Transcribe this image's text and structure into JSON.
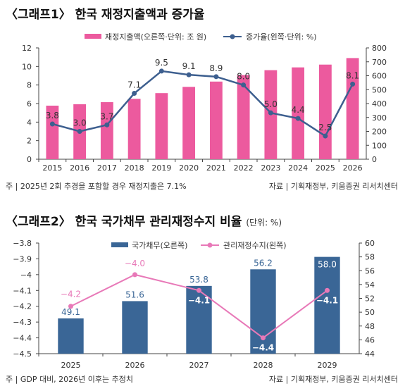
{
  "charts": [
    {
      "title": "〈그래프1〉 한국 재정지출액과 증가율",
      "subtitle": "",
      "footnote_left": "주 | 2025년 2회 추경을 포함할 경우 재정지출은 7.1%",
      "footnote_right": "자료 | 기획재정부, 키움증권 리서치센터",
      "colors": {
        "bar": "#ec5a9e",
        "line": "#3d5f8f",
        "label": "#333333"
      }
    },
    {
      "title": "〈그래프2〉 한국 국가채무 관리재정수지 비율",
      "subtitle": "(단위: %)",
      "footnote_left": "주 | GDP 대비, 2026년 이후는 추정치",
      "footnote_right": "자료 | 기획재정부, 키움증권 리서치센터",
      "colors": {
        "bar": "#3a6696",
        "line": "#e879b8",
        "bar_label": "#3a6696",
        "line_label": "#e879b8"
      }
    }
  ],
  "chart_data": [
    {
      "type": "bar",
      "categories": [
        "2015",
        "2016",
        "2017",
        "2018",
        "2019",
        "2020",
        "2021",
        "2022",
        "2023",
        "2024",
        "2025",
        "2026"
      ],
      "series": [
        {
          "name": "재정지출액(오른쪽·단위: 조 원)",
          "type": "bar",
          "axis": "right",
          "values": [
            385,
            395,
            410,
            434,
            475,
            520,
            558,
            605,
            640,
            660,
            680,
            727
          ]
        },
        {
          "name": "증가율(왼쪽·단위: %)",
          "type": "line",
          "axis": "left",
          "values": [
            3.8,
            3.0,
            3.7,
            7.1,
            9.5,
            9.1,
            8.9,
            8.0,
            5.0,
            4.4,
            2.5,
            8.1
          ],
          "labels": [
            "3.8",
            "3.0",
            "3.7",
            "7.1",
            "9.5",
            "9.1",
            "8.9",
            "8.0",
            "5.0",
            "4.4",
            "2.5",
            "8.1"
          ]
        }
      ],
      "y_left": {
        "min": 0,
        "max": 12,
        "ticks": [
          "0",
          "2",
          "4",
          "6",
          "8",
          "10",
          "12"
        ]
      },
      "y_right": {
        "min": 0,
        "max": 800,
        "ticks": [
          "0",
          "100",
          "200",
          "300",
          "400",
          "500",
          "600",
          "700",
          "800"
        ]
      },
      "legend_position": "top",
      "grid": false
    },
    {
      "type": "bar",
      "categories": [
        "2025",
        "2026",
        "2027",
        "2028",
        "2029"
      ],
      "series": [
        {
          "name": "국가채무(오른쪽)",
          "type": "bar",
          "axis": "right",
          "values": [
            49.1,
            51.6,
            53.8,
            56.2,
            58.0
          ],
          "labels": [
            "49.1",
            "51.6",
            "53.8",
            "56.2",
            "58.0"
          ]
        },
        {
          "name": "관리재정수지(왼쪽)",
          "type": "line",
          "axis": "left",
          "values": [
            -4.2,
            -4.0,
            -4.1,
            -4.4,
            -4.1
          ],
          "labels": [
            "−4.2",
            "−4.0",
            "−4.1",
            "−4.4",
            "−4.1"
          ]
        }
      ],
      "y_left": {
        "min": -4.5,
        "max": -3.8,
        "ticks": [
          "−3.8",
          "−3.9",
          "−4",
          "−4.1",
          "−4.2",
          "−4.3",
          "−4.4",
          "−4.5"
        ]
      },
      "y_right": {
        "min": 44,
        "max": 60,
        "ticks": [
          "44",
          "46",
          "48",
          "50",
          "52",
          "54",
          "56",
          "58",
          "60"
        ]
      },
      "legend_position": "top",
      "grid": false
    }
  ]
}
